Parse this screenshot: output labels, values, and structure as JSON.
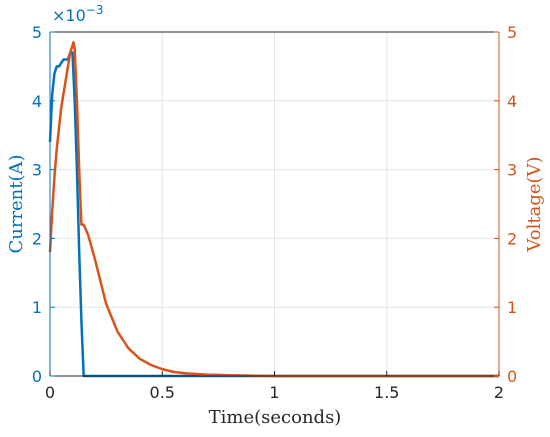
{
  "chart_data": {
    "type": "line",
    "xlabel": "Time(seconds)",
    "x_ticks": [
      "0",
      "0.5",
      "1",
      "1.5",
      "2"
    ],
    "xlim": [
      0,
      2
    ],
    "grid": true,
    "left_axis": {
      "label": "Current(A)",
      "color": "#0072BD",
      "ylim": [
        0,
        0.005
      ],
      "ticks": [
        "0",
        "1",
        "2",
        "3",
        "4",
        "5"
      ],
      "exponent_base": "×10",
      "exponent_power": "−3"
    },
    "right_axis": {
      "label": "Voltage(V)",
      "color": "#D95319",
      "ylim": [
        0,
        5
      ],
      "ticks": [
        "0",
        "1",
        "2",
        "3",
        "4",
        "5"
      ]
    },
    "series": [
      {
        "axis": "left",
        "color": "#0072BD",
        "x": [
          0.0,
          0.01,
          0.02,
          0.03,
          0.04,
          0.05,
          0.06,
          0.07,
          0.08,
          0.09,
          0.1,
          0.11,
          0.12,
          0.13,
          0.14,
          0.15,
          0.2,
          0.5,
          1.0,
          1.5,
          2.0
        ],
        "y": [
          0.0034,
          0.0041,
          0.0044,
          0.0045,
          0.0045,
          0.00455,
          0.0046,
          0.0046,
          0.0046,
          0.0047,
          0.0047,
          0.004,
          0.003,
          0.0018,
          0.0008,
          0.0,
          0.0,
          0.0,
          0.0,
          0.0,
          0.0
        ]
      },
      {
        "axis": "right",
        "color": "#D95319",
        "x": [
          0.0,
          0.01,
          0.02,
          0.03,
          0.04,
          0.05,
          0.06,
          0.07,
          0.08,
          0.09,
          0.1,
          0.105,
          0.11,
          0.12,
          0.13,
          0.14,
          0.15,
          0.17,
          0.2,
          0.25,
          0.3,
          0.35,
          0.4,
          0.45,
          0.5,
          0.55,
          0.6,
          0.7,
          0.8,
          0.9,
          1.0,
          1.2,
          1.5,
          2.0
        ],
        "y": [
          1.8,
          2.4,
          2.9,
          3.3,
          3.6,
          3.9,
          4.1,
          4.3,
          4.5,
          4.7,
          4.8,
          4.85,
          4.75,
          4.0,
          3.0,
          2.2,
          2.2,
          2.05,
          1.7,
          1.05,
          0.65,
          0.4,
          0.25,
          0.16,
          0.1,
          0.06,
          0.04,
          0.02,
          0.01,
          0.005,
          0.0,
          0.0,
          0.0,
          0.0
        ]
      }
    ]
  }
}
